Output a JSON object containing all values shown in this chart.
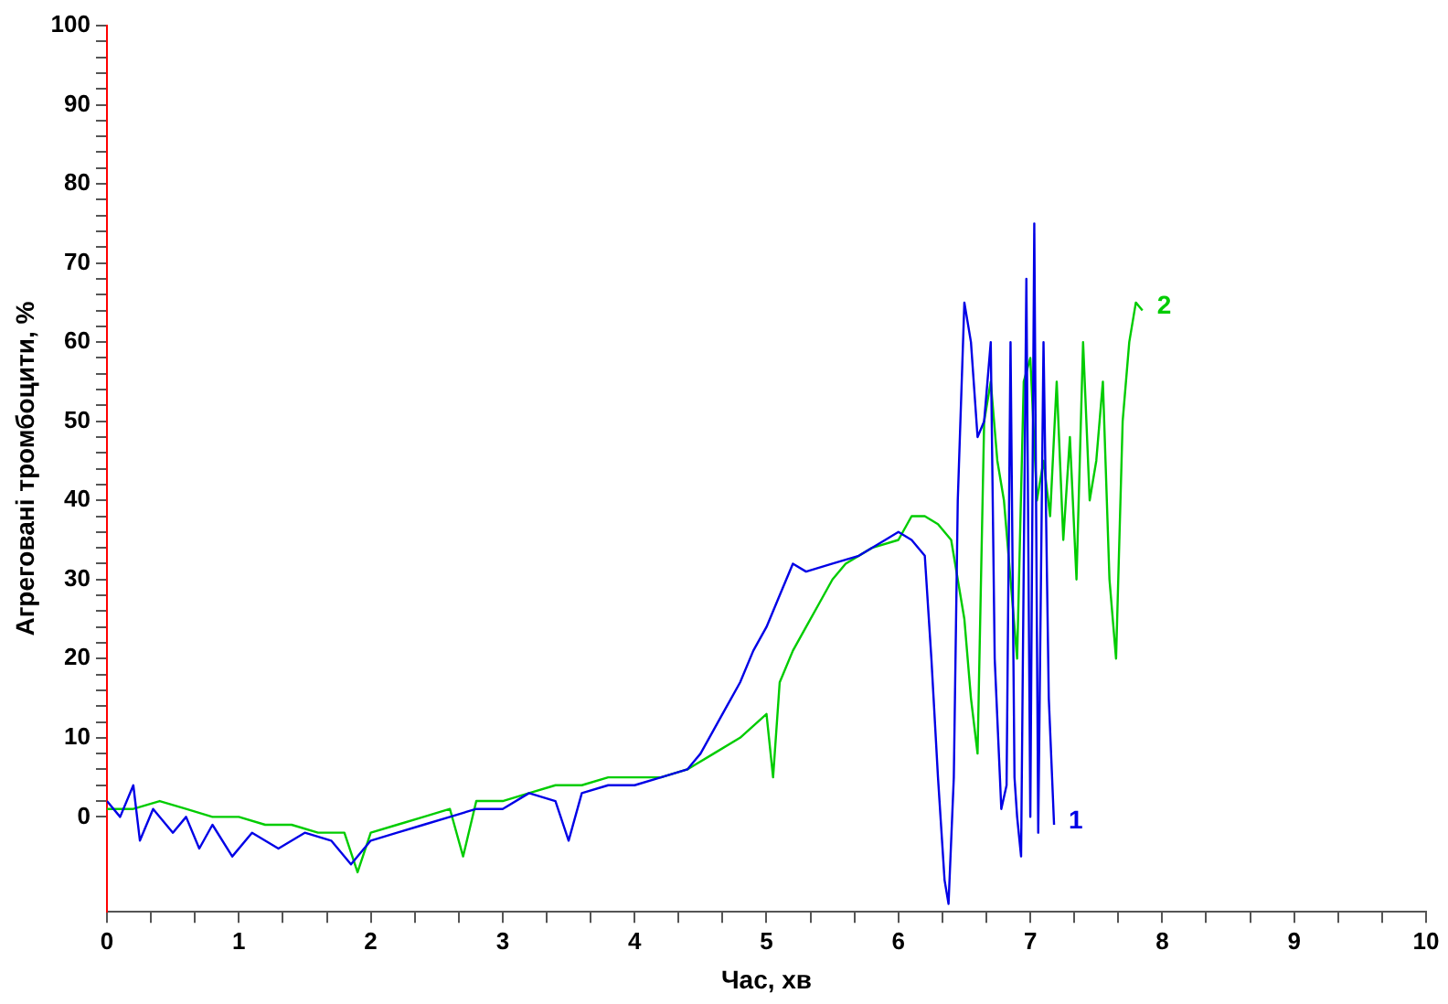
{
  "chart_data": {
    "type": "line",
    "xlabel": "Час, хв",
    "ylabel": "Агреговані тромбоцити, %",
    "xlim": [
      0,
      10
    ],
    "xticks": [
      0,
      {
        "value": 0.333,
        "label": null
      },
      {
        "value": 0.667,
        "label": null
      },
      1,
      {
        "value": 1.333,
        "label": null
      },
      {
        "value": 1.667,
        "label": null
      },
      2,
      {
        "value": 2.333,
        "label": null
      },
      {
        "value": 2.667,
        "label": null
      },
      3,
      {
        "value": 3.333,
        "label": null
      },
      {
        "value": 3.667,
        "label": null
      },
      4,
      {
        "value": 4.333,
        "label": null
      },
      {
        "value": 4.667,
        "label": null
      },
      5,
      {
        "value": 5.333,
        "label": null
      },
      {
        "value": 5.667,
        "label": null
      },
      6,
      {
        "value": 6.333,
        "label": null
      },
      {
        "value": 6.667,
        "label": null
      },
      7,
      {
        "value": 7.333,
        "label": null
      },
      {
        "value": 7.667,
        "label": null
      },
      8,
      {
        "value": 8.333,
        "label": null
      },
      {
        "value": 8.667,
        "label": null
      },
      9,
      {
        "value": 9.333,
        "label": null
      },
      {
        "value": 9.667,
        "label": null
      },
      10
    ],
    "ylim": [
      -12,
      100
    ],
    "yticks": [
      0,
      {
        "value": 2,
        "label": null
      },
      {
        "value": 4,
        "label": null
      },
      {
        "value": 6,
        "label": null
      },
      {
        "value": 8,
        "label": null
      },
      10,
      {
        "value": 12,
        "label": null
      },
      {
        "value": 14,
        "label": null
      },
      {
        "value": 16,
        "label": null
      },
      {
        "value": 18,
        "label": null
      },
      20,
      {
        "value": 22,
        "label": null
      },
      {
        "value": 24,
        "label": null
      },
      {
        "value": 26,
        "label": null
      },
      {
        "value": 28,
        "label": null
      },
      30,
      {
        "value": 32,
        "label": null
      },
      {
        "value": 34,
        "label": null
      },
      {
        "value": 36,
        "label": null
      },
      {
        "value": 38,
        "label": null
      },
      40,
      {
        "value": 42,
        "label": null
      },
      {
        "value": 44,
        "label": null
      },
      {
        "value": 46,
        "label": null
      },
      {
        "value": 48,
        "label": null
      },
      50,
      {
        "value": 52,
        "label": null
      },
      {
        "value": 54,
        "label": null
      },
      {
        "value": 56,
        "label": null
      },
      {
        "value": 58,
        "label": null
      },
      60,
      {
        "value": 62,
        "label": null
      },
      {
        "value": 64,
        "label": null
      },
      {
        "value": 66,
        "label": null
      },
      {
        "value": 68,
        "label": null
      },
      70,
      {
        "value": 72,
        "label": null
      },
      {
        "value": 74,
        "label": null
      },
      {
        "value": 76,
        "label": null
      },
      {
        "value": 78,
        "label": null
      },
      80,
      {
        "value": 82,
        "label": null
      },
      {
        "value": 84,
        "label": null
      },
      {
        "value": 86,
        "label": null
      },
      {
        "value": 88,
        "label": null
      },
      90,
      {
        "value": 92,
        "label": null
      },
      {
        "value": 94,
        "label": null
      },
      {
        "value": 96,
        "label": null
      },
      {
        "value": 98,
        "label": null
      },
      100
    ],
    "grid": false,
    "legend": false,
    "marker": "none",
    "line_style": "solid",
    "series": [
      {
        "name": "1",
        "color": "#0000e6",
        "x": [
          0,
          0.1,
          0.2,
          0.25,
          0.35,
          0.5,
          0.6,
          0.7,
          0.8,
          0.95,
          1.1,
          1.3,
          1.5,
          1.7,
          1.85,
          2.0,
          2.2,
          2.4,
          2.6,
          2.8,
          3.0,
          3.2,
          3.4,
          3.5,
          3.6,
          3.8,
          4.0,
          4.2,
          4.4,
          4.5,
          4.6,
          4.7,
          4.8,
          4.9,
          5.0,
          5.1,
          5.2,
          5.3,
          5.5,
          5.7,
          5.9,
          6.0,
          6.1,
          6.2,
          6.25,
          6.3,
          6.35,
          6.38,
          6.42,
          6.45,
          6.5,
          6.55,
          6.6,
          6.65,
          6.7,
          6.73,
          6.78,
          6.82,
          6.85,
          6.88,
          6.9,
          6.93,
          6.97,
          7.0,
          7.03,
          7.06,
          7.1,
          7.14,
          7.18
        ],
        "values": [
          2,
          0,
          4,
          -3,
          1,
          -2,
          0,
          -4,
          -1,
          -5,
          -2,
          -4,
          -2,
          -3,
          -6,
          -3,
          -2,
          -1,
          0,
          1,
          1,
          3,
          2,
          -3,
          3,
          4,
          4,
          5,
          6,
          8,
          11,
          14,
          17,
          21,
          24,
          28,
          32,
          31,
          32,
          33,
          35,
          36,
          35,
          33,
          20,
          5,
          -8,
          -11,
          5,
          40,
          65,
          60,
          48,
          50,
          60,
          20,
          1,
          4,
          60,
          5,
          0,
          -5,
          68,
          0,
          75,
          -2,
          60,
          15,
          -1
        ]
      },
      {
        "name": "2",
        "color": "#00cc00",
        "x": [
          0,
          0.2,
          0.4,
          0.6,
          0.8,
          1.0,
          1.2,
          1.4,
          1.6,
          1.8,
          1.9,
          2.0,
          2.2,
          2.4,
          2.6,
          2.7,
          2.8,
          3.0,
          3.2,
          3.4,
          3.6,
          3.8,
          4.0,
          4.2,
          4.4,
          4.6,
          4.8,
          5.0,
          5.05,
          5.1,
          5.2,
          5.3,
          5.4,
          5.5,
          5.6,
          5.8,
          6.0,
          6.1,
          6.2,
          6.3,
          6.4,
          6.5,
          6.55,
          6.6,
          6.65,
          6.7,
          6.75,
          6.8,
          6.85,
          6.9,
          6.95,
          7.0,
          7.05,
          7.1,
          7.15,
          7.2,
          7.25,
          7.3,
          7.35,
          7.4,
          7.45,
          7.5,
          7.55,
          7.6,
          7.65,
          7.7,
          7.75,
          7.8,
          7.85
        ],
        "values": [
          1,
          1,
          2,
          1,
          0,
          0,
          -1,
          -1,
          -2,
          -2,
          -7,
          -2,
          -1,
          0,
          1,
          -5,
          2,
          2,
          3,
          4,
          4,
          5,
          5,
          5,
          6,
          8,
          10,
          13,
          5,
          17,
          21,
          24,
          27,
          30,
          32,
          34,
          35,
          38,
          38,
          37,
          35,
          25,
          15,
          8,
          50,
          55,
          45,
          40,
          30,
          20,
          55,
          58,
          40,
          45,
          38,
          55,
          35,
          48,
          30,
          60,
          40,
          45,
          55,
          30,
          20,
          50,
          60,
          65,
          64
        ]
      }
    ]
  }
}
